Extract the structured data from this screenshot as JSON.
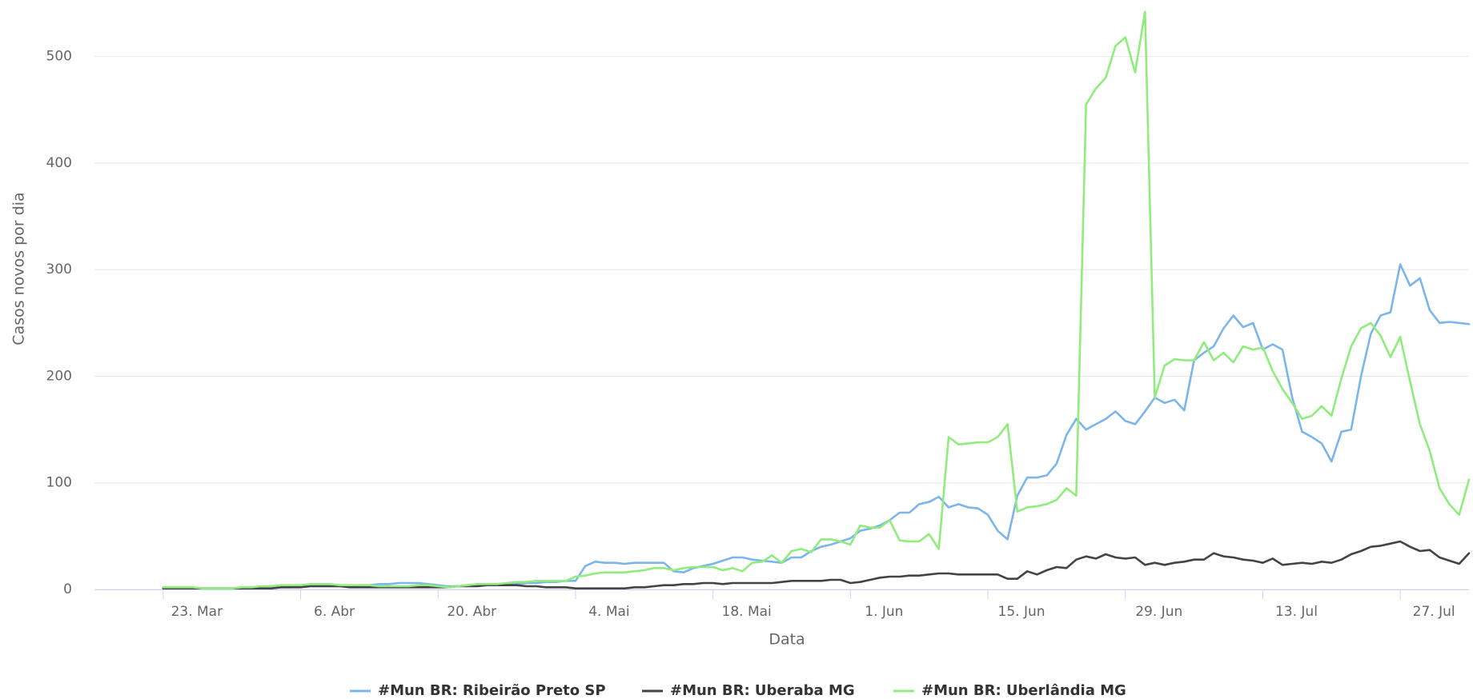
{
  "chart_data": {
    "type": "line",
    "y_axis_label": "Casos novos por dia",
    "x_axis_label": "Data",
    "categories": [
      null,
      null,
      null,
      null,
      null,
      null,
      null,
      "23. Mar",
      null,
      null,
      null,
      null,
      null,
      null,
      null,
      null,
      null,
      null,
      null,
      null,
      null,
      "6. Abr",
      null,
      null,
      null,
      null,
      null,
      null,
      null,
      null,
      null,
      null,
      null,
      null,
      null,
      "20. Abr",
      null,
      null,
      null,
      null,
      null,
      null,
      null,
      null,
      null,
      null,
      null,
      null,
      null,
      "4. Mai",
      null,
      null,
      null,
      null,
      null,
      null,
      null,
      null,
      null,
      null,
      null,
      null,
      null,
      "18. Mai",
      null,
      null,
      null,
      null,
      null,
      null,
      null,
      null,
      null,
      null,
      null,
      null,
      null,
      "1. Jun",
      null,
      null,
      null,
      null,
      null,
      null,
      null,
      null,
      null,
      null,
      null,
      null,
      null,
      "15. Jun",
      null,
      null,
      null,
      null,
      null,
      null,
      null,
      null,
      null,
      null,
      null,
      null,
      null,
      "29. Jun",
      null,
      null,
      null,
      null,
      null,
      null,
      null,
      null,
      null,
      null,
      null,
      null,
      null,
      "13. Jul",
      null,
      null,
      null,
      null,
      null,
      null,
      null,
      null,
      null,
      null,
      null,
      null,
      null,
      "27. Jul",
      null,
      null,
      null,
      null,
      null,
      null,
      null
    ],
    "series": [
      {
        "name": "#Mun BR: Ribeirão Preto SP",
        "color": "#7cb5ec",
        "values": [
          null,
          null,
          null,
          null,
          null,
          null,
          null,
          1,
          1,
          1,
          1,
          1,
          1,
          1,
          1,
          1,
          1,
          1,
          1,
          2,
          2,
          3,
          3,
          3,
          3,
          3,
          3,
          4,
          4,
          5,
          5,
          6,
          6,
          6,
          5,
          4,
          3,
          3,
          4,
          4,
          5,
          5,
          5,
          5,
          6,
          6,
          7,
          7,
          8,
          8,
          22,
          26,
          25,
          25,
          24,
          25,
          25,
          25,
          25,
          17,
          16,
          20,
          22,
          24,
          27,
          30,
          30,
          28,
          27,
          26,
          25,
          30,
          30,
          36,
          40,
          42,
          45,
          48,
          55,
          57,
          60,
          65,
          72,
          72,
          80,
          82,
          87,
          77,
          80,
          77,
          76,
          70,
          55,
          47,
          88,
          105,
          105,
          107,
          118,
          145,
          160,
          150,
          155,
          160,
          167,
          158,
          155,
          167,
          180,
          175,
          178,
          168,
          215,
          222,
          228,
          245,
          257,
          246,
          250,
          225,
          230,
          225,
          180,
          148,
          143,
          137,
          120,
          148,
          150,
          200,
          240,
          257,
          260,
          305,
          285,
          292,
          262,
          250,
          251,
          250,
          249
        ]
      },
      {
        "name": "#Mun BR: Uberaba MG",
        "color": "#434348",
        "values": [
          null,
          null,
          null,
          null,
          null,
          null,
          null,
          1,
          1,
          1,
          1,
          1,
          1,
          1,
          1,
          1,
          1,
          1,
          1,
          2,
          2,
          2,
          3,
          3,
          3,
          3,
          2,
          2,
          2,
          2,
          2,
          2,
          2,
          2,
          2,
          2,
          2,
          3,
          3,
          3,
          4,
          4,
          4,
          4,
          3,
          3,
          2,
          2,
          2,
          1,
          1,
          1,
          1,
          1,
          1,
          2,
          2,
          3,
          4,
          4,
          5,
          5,
          6,
          6,
          5,
          6,
          6,
          6,
          6,
          6,
          7,
          8,
          8,
          8,
          8,
          9,
          9,
          6,
          7,
          9,
          11,
          12,
          12,
          13,
          13,
          14,
          15,
          15,
          14,
          14,
          14,
          14,
          14,
          10,
          10,
          17,
          14,
          18,
          21,
          20,
          28,
          31,
          29,
          33,
          30,
          29,
          30,
          23,
          25,
          23,
          25,
          26,
          28,
          28,
          34,
          31,
          30,
          28,
          27,
          25,
          29,
          23,
          24,
          25,
          24,
          26,
          25,
          28,
          33,
          36,
          40,
          41,
          43,
          45,
          40,
          36,
          37,
          30,
          27,
          24,
          34
        ]
      },
      {
        "name": "#Mun BR: Uberlândia MG",
        "color": "#90ed7d",
        "values": [
          null,
          null,
          null,
          null,
          null,
          null,
          null,
          2,
          2,
          2,
          2,
          1,
          1,
          1,
          1,
          2,
          2,
          3,
          3,
          4,
          4,
          4,
          5,
          5,
          5,
          4,
          4,
          4,
          4,
          3,
          3,
          3,
          3,
          4,
          4,
          3,
          2,
          3,
          4,
          5,
          5,
          5,
          6,
          7,
          7,
          8,
          8,
          8,
          8,
          12,
          13,
          15,
          16,
          16,
          16,
          17,
          18,
          20,
          20,
          18,
          20,
          21,
          21,
          21,
          18,
          20,
          17,
          25,
          26,
          32,
          25,
          36,
          38,
          35,
          47,
          47,
          45,
          42,
          60,
          58,
          58,
          65,
          46,
          45,
          45,
          52,
          38,
          143,
          136,
          137,
          138,
          138,
          143,
          155,
          73,
          77,
          78,
          80,
          84,
          95,
          88,
          455,
          470,
          480,
          510,
          518,
          485,
          542,
          180,
          210,
          216,
          215,
          215,
          232,
          215,
          222,
          213,
          228,
          225,
          227,
          205,
          188,
          175,
          160,
          163,
          172,
          163,
          198,
          228,
          245,
          250,
          238,
          218,
          237,
          195,
          155,
          130,
          95,
          80,
          70,
          103
        ]
      }
    ],
    "ylim": [
      0,
      550
    ],
    "yticks": [
      0,
      100,
      200,
      300,
      400,
      500
    ],
    "grid": true,
    "legend": "bottom"
  }
}
